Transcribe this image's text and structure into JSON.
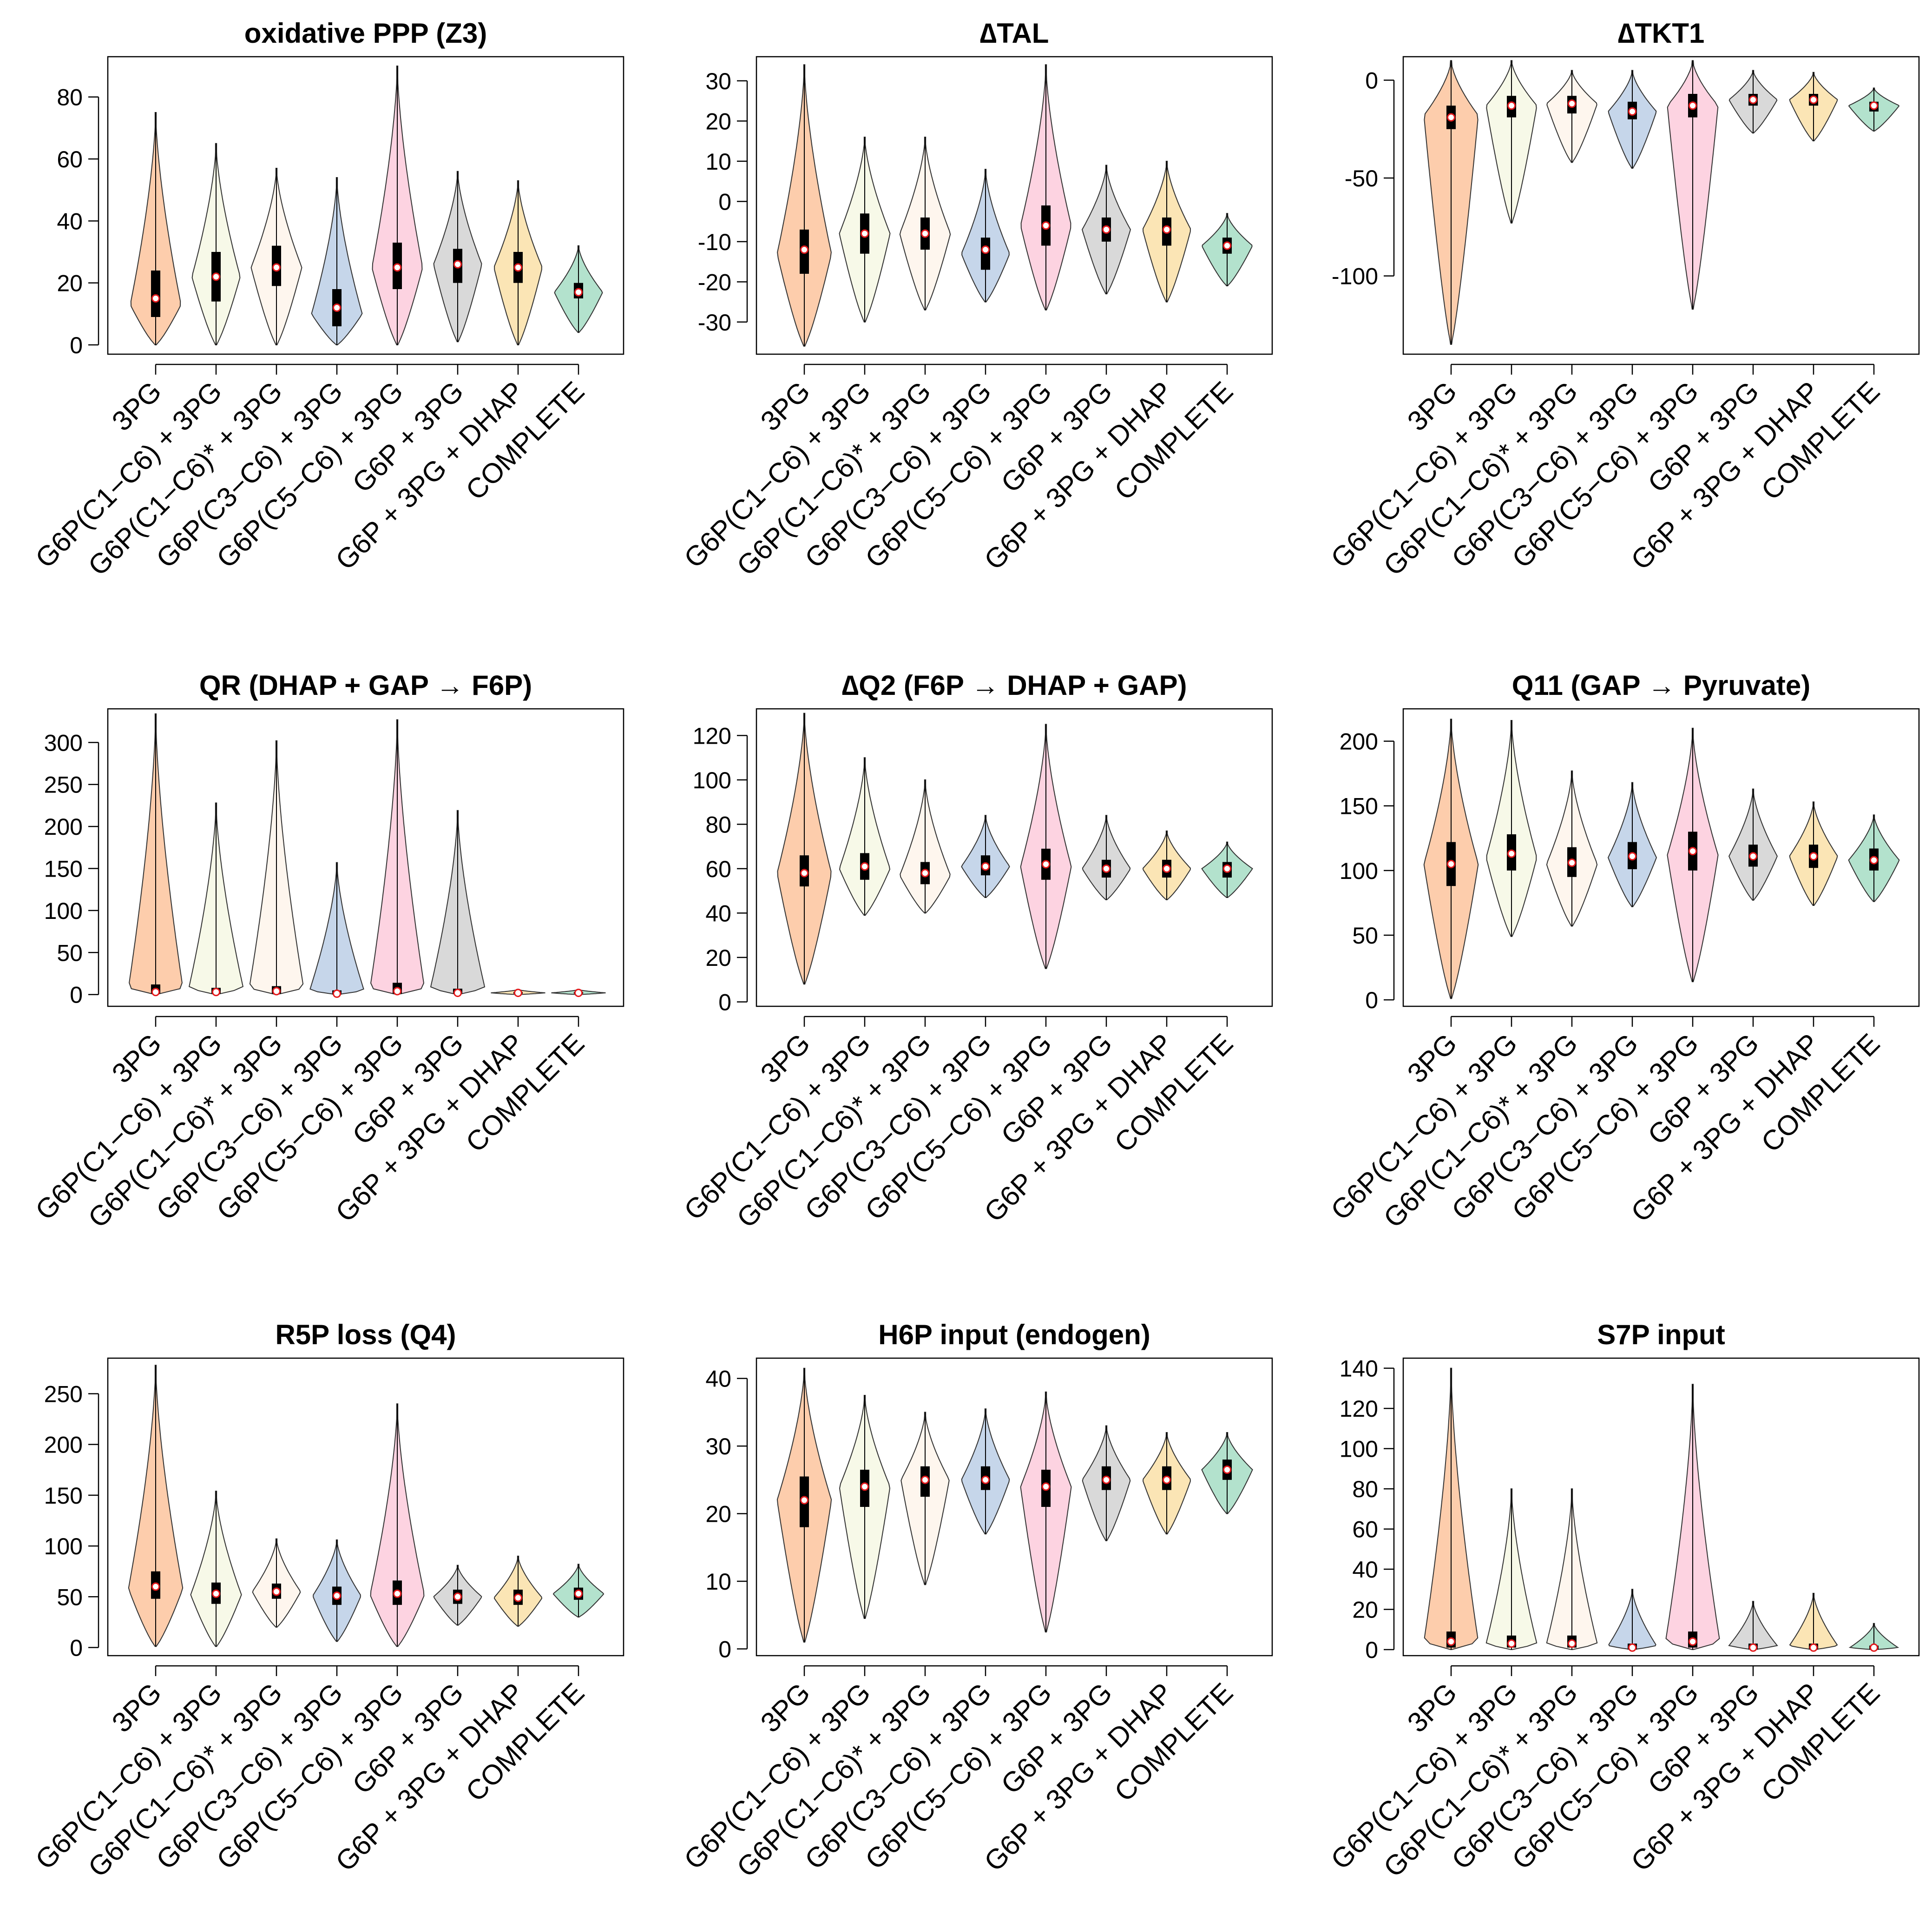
{
  "figure": {
    "colors": [
      "#fdcdac",
      "#f7f9e8",
      "#fef6ee",
      "#c6d6ea",
      "#fdd3e1",
      "#d9d9d9",
      "#fbe5b5",
      "#b3e2cd"
    ],
    "categories": [
      "3PG",
      "G6P(C1−C6) + 3PG",
      "G6P(C1−C6)* + 3PG",
      "G6P(C3−C6) + 3PG",
      "G6P(C5−C6) + 3PG",
      "G6P + 3PG",
      "G6P + 3PG + DHAP",
      "COMPLETE"
    ]
  },
  "chart_data": [
    {
      "type": "violin",
      "title": "oxidative PPP (Z3)",
      "ylim": [
        -3,
        93
      ],
      "yticks": [
        0,
        20,
        40,
        60,
        80
      ],
      "ytick_labels": [
        "0",
        "20",
        "40",
        "60",
        "80"
      ],
      "series": [
        {
          "name": "3PG",
          "min": 0,
          "max": 75,
          "q1": 9,
          "median": 15,
          "q3": 24,
          "mode": 13,
          "maxw": 0.42
        },
        {
          "name": "G6P(C1−C6) + 3PG",
          "min": 0,
          "max": 65,
          "q1": 14,
          "median": 22,
          "q3": 30,
          "mode": 22,
          "maxw": 0.4
        },
        {
          "name": "G6P(C1−C6)* + 3PG",
          "min": 0,
          "max": 57,
          "q1": 19,
          "median": 25,
          "q3": 32,
          "mode": 25,
          "maxw": 0.42
        },
        {
          "name": "G6P(C3−C6) + 3PG",
          "min": 0,
          "max": 54,
          "q1": 6,
          "median": 12,
          "q3": 18,
          "mode": 10,
          "maxw": 0.42
        },
        {
          "name": "G6P(C5−C6) + 3PG",
          "min": 0,
          "max": 90,
          "q1": 18,
          "median": 25,
          "q3": 33,
          "mode": 25,
          "maxw": 0.42
        },
        {
          "name": "G6P + 3PG",
          "min": 1,
          "max": 56,
          "q1": 20,
          "median": 26,
          "q3": 31,
          "mode": 26,
          "maxw": 0.4
        },
        {
          "name": "G6P + 3PG + DHAP",
          "min": 0,
          "max": 53,
          "q1": 20,
          "median": 25,
          "q3": 30,
          "mode": 25,
          "maxw": 0.4
        },
        {
          "name": "COMPLETE",
          "min": 4,
          "max": 32,
          "q1": 15,
          "median": 17,
          "q3": 20,
          "mode": 17,
          "maxw": 0.4
        }
      ]
    },
    {
      "type": "violin",
      "title": "∆TAL",
      "ylim": [
        -38,
        36
      ],
      "yticks": [
        -30,
        -20,
        -10,
        0,
        10,
        20,
        30
      ],
      "ytick_labels": [
        "-30",
        "-20",
        "-10",
        "0",
        "10",
        "20",
        "30"
      ],
      "series": [
        {
          "name": "3PG",
          "min": -36,
          "max": 34,
          "q1": -18,
          "median": -12,
          "q3": -7,
          "mode": -13,
          "maxw": 0.45
        },
        {
          "name": "G6P(C1−C6) + 3PG",
          "min": -30,
          "max": 16,
          "q1": -13,
          "median": -8,
          "q3": -3,
          "mode": -8,
          "maxw": 0.42
        },
        {
          "name": "G6P(C1−C6)* + 3PG",
          "min": -27,
          "max": 16,
          "q1": -12,
          "median": -8,
          "q3": -4,
          "mode": -8,
          "maxw": 0.42
        },
        {
          "name": "G6P(C3−C6) + 3PG",
          "min": -25,
          "max": 8,
          "q1": -17,
          "median": -12,
          "q3": -9,
          "mode": -13,
          "maxw": 0.4
        },
        {
          "name": "G6P(C5−C6) + 3PG",
          "min": -27,
          "max": 34,
          "q1": -11,
          "median": -6,
          "q3": -1,
          "mode": -6,
          "maxw": 0.42
        },
        {
          "name": "G6P + 3PG",
          "min": -23,
          "max": 9,
          "q1": -10,
          "median": -7,
          "q3": -4,
          "mode": -7,
          "maxw": 0.4
        },
        {
          "name": "G6P + 3PG + DHAP",
          "min": -25,
          "max": 10,
          "q1": -11,
          "median": -7,
          "q3": -4,
          "mode": -7,
          "maxw": 0.4
        },
        {
          "name": "COMPLETE",
          "min": -21,
          "max": -3,
          "q1": -13,
          "median": -11,
          "q3": -9,
          "mode": -11,
          "maxw": 0.42
        }
      ]
    },
    {
      "type": "violin",
      "title": "∆TKT1",
      "ylim": [
        -140,
        12
      ],
      "yticks": [
        -100,
        -50,
        0
      ],
      "ytick_labels": [
        "-100",
        "-50",
        "0"
      ],
      "series": [
        {
          "name": "3PG",
          "min": -135,
          "max": 10,
          "q1": -25,
          "median": -19,
          "q3": -13,
          "mode": -18,
          "maxw": 0.45
        },
        {
          "name": "G6P(C1−C6) + 3PG",
          "min": -73,
          "max": 10,
          "q1": -19,
          "median": -13,
          "q3": -8,
          "mode": -13,
          "maxw": 0.42
        },
        {
          "name": "G6P(C1−C6)* + 3PG",
          "min": -42,
          "max": 5,
          "q1": -17,
          "median": -12,
          "q3": -8,
          "mode": -12,
          "maxw": 0.42
        },
        {
          "name": "G6P(C3−C6) + 3PG",
          "min": -45,
          "max": 5,
          "q1": -20,
          "median": -16,
          "q3": -11,
          "mode": -16,
          "maxw": 0.4
        },
        {
          "name": "G6P(C5−C6) + 3PG",
          "min": -117,
          "max": 10,
          "q1": -19,
          "median": -13,
          "q3": -7,
          "mode": -13,
          "maxw": 0.42
        },
        {
          "name": "G6P + 3PG",
          "min": -27,
          "max": 5,
          "q1": -13,
          "median": -10,
          "q3": -7,
          "mode": -10,
          "maxw": 0.4
        },
        {
          "name": "G6P + 3PG + DHAP",
          "min": -31,
          "max": 4,
          "q1": -13,
          "median": -10,
          "q3": -7,
          "mode": -10,
          "maxw": 0.4
        },
        {
          "name": "COMPLETE",
          "min": -26,
          "max": -4,
          "q1": -16,
          "median": -13,
          "q3": -11,
          "mode": -13,
          "maxw": 0.42
        }
      ]
    },
    {
      "type": "violin",
      "title": "QR (DHAP + GAP → F6P)",
      "ylim": [
        -14,
        340
      ],
      "yticks": [
        0,
        50,
        100,
        150,
        200,
        250,
        300
      ],
      "ytick_labels": [
        "0",
        "50",
        "100",
        "150",
        "200",
        "250",
        "300"
      ],
      "series": [
        {
          "name": "3PG",
          "min": 0,
          "max": 334,
          "q1": 1,
          "median": 3,
          "q3": 12,
          "mode": 8,
          "maxw": 0.45
        },
        {
          "name": "G6P(C1−C6) + 3PG",
          "min": 0,
          "max": 228,
          "q1": 1,
          "median": 3,
          "q3": 8,
          "mode": 8,
          "maxw": 0.45
        },
        {
          "name": "G6P(C1−C6)* + 3PG",
          "min": 0,
          "max": 302,
          "q1": 1,
          "median": 4,
          "q3": 10,
          "mode": 8,
          "maxw": 0.45
        },
        {
          "name": "G6P(C3−C6) + 3PG",
          "min": 0,
          "max": 157,
          "q1": 0,
          "median": 1,
          "q3": 5,
          "mode": 5,
          "maxw": 0.45
        },
        {
          "name": "G6P(C5−C6) + 3PG",
          "min": 0,
          "max": 327,
          "q1": 1,
          "median": 4,
          "q3": 14,
          "mode": 8,
          "maxw": 0.45
        },
        {
          "name": "G6P + 3PG",
          "min": 0,
          "max": 219,
          "q1": 1,
          "median": 2,
          "q3": 7,
          "mode": 8,
          "maxw": 0.45
        },
        {
          "name": "G6P + 3PG + DHAP",
          "min": 0,
          "max": 6,
          "q1": 1,
          "median": 2,
          "q3": 3,
          "mode": 2,
          "maxw": 0.45
        },
        {
          "name": "COMPLETE",
          "min": 0,
          "max": 6,
          "q1": 1,
          "median": 2,
          "q3": 3,
          "mode": 2,
          "maxw": 0.45
        }
      ]
    },
    {
      "type": "violin",
      "title": "∆Q2 (F6P → DHAP + GAP)",
      "ylim": [
        -2,
        132
      ],
      "yticks": [
        0,
        20,
        40,
        60,
        80,
        100,
        120
      ],
      "ytick_labels": [
        "0",
        "20",
        "40",
        "60",
        "80",
        "100",
        "120"
      ],
      "series": [
        {
          "name": "3PG",
          "min": 8,
          "max": 130,
          "q1": 52,
          "median": 58,
          "q3": 66,
          "mode": 58,
          "maxw": 0.45
        },
        {
          "name": "G6P(C1−C6) + 3PG",
          "min": 39,
          "max": 110,
          "q1": 55,
          "median": 61,
          "q3": 67,
          "mode": 60,
          "maxw": 0.42
        },
        {
          "name": "G6P(C1−C6)* + 3PG",
          "min": 40,
          "max": 100,
          "q1": 53,
          "median": 58,
          "q3": 63,
          "mode": 57,
          "maxw": 0.42
        },
        {
          "name": "G6P(C3−C6) + 3PG",
          "min": 47,
          "max": 84,
          "q1": 57,
          "median": 61,
          "q3": 66,
          "mode": 61,
          "maxw": 0.4
        },
        {
          "name": "G6P(C5−C6) + 3PG",
          "min": 15,
          "max": 125,
          "q1": 55,
          "median": 62,
          "q3": 69,
          "mode": 61,
          "maxw": 0.42
        },
        {
          "name": "G6P + 3PG",
          "min": 46,
          "max": 84,
          "q1": 56,
          "median": 60,
          "q3": 64,
          "mode": 60,
          "maxw": 0.4
        },
        {
          "name": "G6P + 3PG + DHAP",
          "min": 46,
          "max": 77,
          "q1": 56,
          "median": 60,
          "q3": 64,
          "mode": 60,
          "maxw": 0.4
        },
        {
          "name": "COMPLETE",
          "min": 47,
          "max": 72,
          "q1": 56,
          "median": 60,
          "q3": 63,
          "mode": 60,
          "maxw": 0.42
        }
      ]
    },
    {
      "type": "violin",
      "title": "Q11 (GAP → Pyruvate)",
      "ylim": [
        -5,
        225
      ],
      "yticks": [
        0,
        50,
        100,
        150,
        200
      ],
      "ytick_labels": [
        "0",
        "50",
        "100",
        "150",
        "200"
      ],
      "series": [
        {
          "name": "3PG",
          "min": 1,
          "max": 217,
          "q1": 88,
          "median": 105,
          "q3": 122,
          "mode": 105,
          "maxw": 0.45
        },
        {
          "name": "G6P(C1−C6) + 3PG",
          "min": 49,
          "max": 216,
          "q1": 100,
          "median": 113,
          "q3": 128,
          "mode": 110,
          "maxw": 0.42
        },
        {
          "name": "G6P(C1−C6)* + 3PG",
          "min": 57,
          "max": 177,
          "q1": 95,
          "median": 106,
          "q3": 118,
          "mode": 105,
          "maxw": 0.42
        },
        {
          "name": "G6P(C3−C6) + 3PG",
          "min": 72,
          "max": 168,
          "q1": 101,
          "median": 111,
          "q3": 122,
          "mode": 110,
          "maxw": 0.4
        },
        {
          "name": "G6P(C5−C6) + 3PG",
          "min": 14,
          "max": 210,
          "q1": 100,
          "median": 115,
          "q3": 130,
          "mode": 112,
          "maxw": 0.42
        },
        {
          "name": "G6P + 3PG",
          "min": 77,
          "max": 163,
          "q1": 103,
          "median": 111,
          "q3": 120,
          "mode": 111,
          "maxw": 0.4
        },
        {
          "name": "G6P + 3PG + DHAP",
          "min": 73,
          "max": 153,
          "q1": 102,
          "median": 111,
          "q3": 120,
          "mode": 111,
          "maxw": 0.4
        },
        {
          "name": "COMPLETE",
          "min": 76,
          "max": 143,
          "q1": 100,
          "median": 108,
          "q3": 117,
          "mode": 108,
          "maxw": 0.42
        }
      ]
    },
    {
      "type": "violin",
      "title": "R5P loss (Q4)",
      "ylim": [
        -8,
        285
      ],
      "yticks": [
        0,
        50,
        100,
        150,
        200,
        250
      ],
      "ytick_labels": [
        "0",
        "50",
        "100",
        "150",
        "200",
        "250"
      ],
      "series": [
        {
          "name": "3PG",
          "min": 1,
          "max": 278,
          "q1": 48,
          "median": 60,
          "q3": 75,
          "mode": 58,
          "maxw": 0.45
        },
        {
          "name": "G6P(C1−C6) + 3PG",
          "min": 1,
          "max": 154,
          "q1": 43,
          "median": 53,
          "q3": 64,
          "mode": 52,
          "maxw": 0.42
        },
        {
          "name": "G6P(C1−C6)* + 3PG",
          "min": 20,
          "max": 107,
          "q1": 48,
          "median": 55,
          "q3": 63,
          "mode": 55,
          "maxw": 0.4
        },
        {
          "name": "G6P(C3−C6) + 3PG",
          "min": 6,
          "max": 106,
          "q1": 42,
          "median": 51,
          "q3": 60,
          "mode": 51,
          "maxw": 0.4
        },
        {
          "name": "G6P(C5−C6) + 3PG",
          "min": 1,
          "max": 240,
          "q1": 42,
          "median": 53,
          "q3": 66,
          "mode": 52,
          "maxw": 0.45
        },
        {
          "name": "G6P + 3PG",
          "min": 22,
          "max": 81,
          "q1": 43,
          "median": 50,
          "q3": 57,
          "mode": 50,
          "maxw": 0.4
        },
        {
          "name": "G6P + 3PG + DHAP",
          "min": 21,
          "max": 90,
          "q1": 42,
          "median": 49,
          "q3": 57,
          "mode": 49,
          "maxw": 0.4
        },
        {
          "name": "COMPLETE",
          "min": 30,
          "max": 82,
          "q1": 47,
          "median": 53,
          "q3": 59,
          "mode": 53,
          "maxw": 0.42
        }
      ]
    },
    {
      "type": "violin",
      "title": "H6P input (endogen)",
      "ylim": [
        -1,
        43
      ],
      "yticks": [
        0,
        10,
        20,
        30,
        40
      ],
      "ytick_labels": [
        "0",
        "10",
        "20",
        "30",
        "40"
      ],
      "series": [
        {
          "name": "3PG",
          "min": 1,
          "max": 41.5,
          "q1": 18,
          "median": 22,
          "q3": 25.5,
          "mode": 22,
          "maxw": 0.45
        },
        {
          "name": "G6P(C1−C6) + 3PG",
          "min": 4.5,
          "max": 37.5,
          "q1": 21,
          "median": 24,
          "q3": 26.5,
          "mode": 24,
          "maxw": 0.42
        },
        {
          "name": "G6P(C1−C6)* + 3PG",
          "min": 9.5,
          "max": 35,
          "q1": 22.5,
          "median": 25,
          "q3": 27,
          "mode": 25,
          "maxw": 0.4
        },
        {
          "name": "G6P(C3−C6) + 3PG",
          "min": 17,
          "max": 35.5,
          "q1": 23.5,
          "median": 25,
          "q3": 27,
          "mode": 25,
          "maxw": 0.4
        },
        {
          "name": "G6P(C5−C6) + 3PG",
          "min": 2.5,
          "max": 38,
          "q1": 21,
          "median": 24,
          "q3": 26.5,
          "mode": 24,
          "maxw": 0.42
        },
        {
          "name": "G6P + 3PG",
          "min": 16,
          "max": 33,
          "q1": 23.5,
          "median": 25,
          "q3": 27,
          "mode": 25,
          "maxw": 0.4
        },
        {
          "name": "G6P + 3PG + DHAP",
          "min": 17,
          "max": 32,
          "q1": 23.5,
          "median": 25,
          "q3": 27,
          "mode": 25,
          "maxw": 0.4
        },
        {
          "name": "COMPLETE",
          "min": 20,
          "max": 32,
          "q1": 25,
          "median": 26.5,
          "q3": 28,
          "mode": 26.5,
          "maxw": 0.42
        }
      ]
    },
    {
      "type": "violin",
      "title": "S7P input",
      "ylim": [
        -3,
        145
      ],
      "yticks": [
        0,
        20,
        40,
        60,
        80,
        100,
        120,
        140
      ],
      "ytick_labels": [
        "0",
        "20",
        "40",
        "60",
        "80",
        "100",
        "120",
        "140"
      ],
      "series": [
        {
          "name": "3PG",
          "min": 0,
          "max": 140,
          "q1": 1,
          "median": 4,
          "q3": 9,
          "mode": 4,
          "maxw": 0.45
        },
        {
          "name": "G6P(C1−C6) + 3PG",
          "min": 0,
          "max": 80,
          "q1": 1,
          "median": 3,
          "q3": 7,
          "mode": 3,
          "maxw": 0.42
        },
        {
          "name": "G6P(C1−C6)* + 3PG",
          "min": 0,
          "max": 80,
          "q1": 1,
          "median": 3,
          "q3": 7,
          "mode": 3,
          "maxw": 0.42
        },
        {
          "name": "G6P(C3−C6) + 3PG",
          "min": 0,
          "max": 30,
          "q1": 0,
          "median": 1,
          "q3": 3,
          "mode": 2,
          "maxw": 0.4
        },
        {
          "name": "G6P(C5−C6) + 3PG",
          "min": 0,
          "max": 132,
          "q1": 1,
          "median": 4,
          "q3": 9,
          "mode": 4,
          "maxw": 0.45
        },
        {
          "name": "G6P + 3PG",
          "min": 0,
          "max": 24,
          "q1": 0,
          "median": 1,
          "q3": 3,
          "mode": 2,
          "maxw": 0.4
        },
        {
          "name": "G6P + 3PG + DHAP",
          "min": 0,
          "max": 28,
          "q1": 0,
          "median": 1,
          "q3": 3,
          "mode": 2,
          "maxw": 0.4
        },
        {
          "name": "COMPLETE",
          "min": 0,
          "max": 13,
          "q1": 0,
          "median": 1,
          "q3": 2,
          "mode": 1,
          "maxw": 0.4
        }
      ]
    }
  ]
}
